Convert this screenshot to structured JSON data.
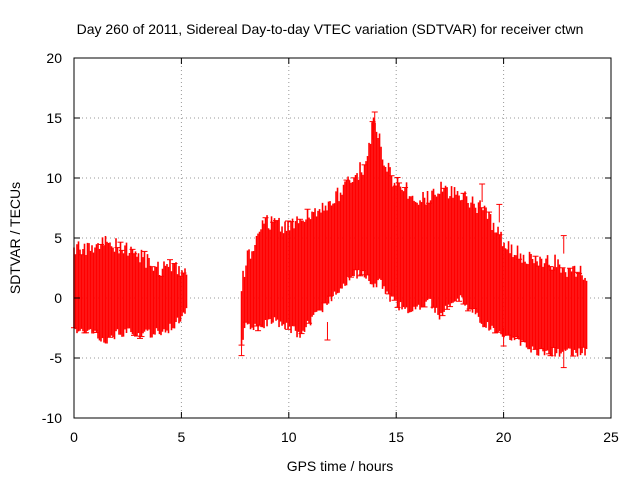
{
  "chart_data": {
    "type": "scatter",
    "title": "Day 260 of 2011, Sidereal Day-to-day VTEC variation (SDTVAR) for receiver ctwn",
    "xlabel": "GPS time / hours",
    "ylabel": "SDTVAR / TECUs",
    "xlim": [
      0,
      25
    ],
    "ylim": [
      -10,
      20
    ],
    "x_ticks": [
      0,
      5,
      10,
      15,
      20,
      25
    ],
    "y_ticks": [
      -10,
      -5,
      0,
      5,
      10,
      15,
      20
    ],
    "x_tick_labels": [
      "0",
      "5",
      "10",
      "15",
      "20",
      "25"
    ],
    "y_tick_labels": [
      "-10",
      "-5",
      "0",
      "5",
      "10",
      "15",
      "20"
    ],
    "grid": true,
    "grid_style": "dotted",
    "series_color": "#ff0000",
    "series": [
      {
        "name": "SDTVAR error bars",
        "description_of_shape": "dense error-bar band",
        "segments": [
          {
            "x": [
              0.0,
              0.5,
              1.0,
              1.5,
              2.0,
              2.5,
              3.0,
              3.5,
              4.0,
              4.5,
              5.0,
              5.3
            ],
            "low": [
              -2.8,
              -2.8,
              -3.0,
              -3.5,
              -3.0,
              -2.8,
              -3.0,
              -3.0,
              -2.8,
              -2.5,
              -1.5,
              -1.0
            ],
            "high": [
              4.0,
              4.2,
              4.2,
              4.5,
              4.5,
              4.0,
              3.5,
              3.0,
              2.5,
              2.5,
              2.5,
              2.5
            ]
          },
          {
            "x": [
              7.8,
              8.0,
              8.5,
              9.0,
              9.5,
              10.0,
              10.5,
              11.0,
              11.5,
              12.0,
              12.5,
              13.0,
              13.5,
              13.8,
              14.0,
              14.2,
              14.5,
              15.0,
              15.5,
              16.0,
              16.5,
              17.0,
              17.5,
              18.0,
              18.5,
              19.0,
              19.5,
              20.0,
              20.5,
              21.0,
              21.5,
              22.0,
              22.5,
              23.0,
              23.5,
              23.9
            ],
            "low": [
              -4.0,
              -2.0,
              -2.5,
              -2.0,
              -2.0,
              -2.5,
              -3.0,
              -2.0,
              -1.0,
              0.0,
              1.0,
              2.0,
              2.0,
              1.5,
              1.0,
              1.5,
              0.5,
              -0.5,
              -1.0,
              -1.0,
              0.0,
              -1.5,
              -0.5,
              0.0,
              -1.0,
              -2.0,
              -2.5,
              -3.0,
              -3.5,
              -4.0,
              -4.5,
              -4.5,
              -4.5,
              -4.5,
              -4.5,
              -4.5
            ],
            "high": [
              1.0,
              3.0,
              5.0,
              6.5,
              6.0,
              6.0,
              6.5,
              7.0,
              7.5,
              8.0,
              9.0,
              10.0,
              11.0,
              13.5,
              15.0,
              13.5,
              11.0,
              9.5,
              9.0,
              8.0,
              8.5,
              9.0,
              9.0,
              8.5,
              8.0,
              7.5,
              6.0,
              4.5,
              4.0,
              3.5,
              3.0,
              3.0,
              3.0,
              2.0,
              2.0,
              2.0
            ]
          }
        ],
        "outliers": [
          {
            "x": 14.0,
            "y": 15.5
          },
          {
            "x": 13.9,
            "y": 14.7
          },
          {
            "x": 19.0,
            "y": 9.5
          },
          {
            "x": 19.8,
            "y": 7.8
          },
          {
            "x": 22.8,
            "y": 5.2
          },
          {
            "x": 22.8,
            "y": -5.8
          },
          {
            "x": 7.8,
            "y": -4.8
          },
          {
            "x": 11.8,
            "y": -3.5
          },
          {
            "x": 20.0,
            "y": -4.0
          }
        ]
      }
    ]
  }
}
